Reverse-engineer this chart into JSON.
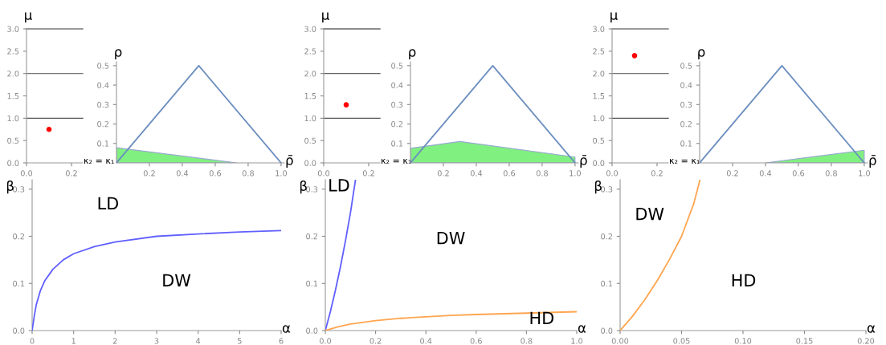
{
  "chart_data": [
    {
      "type": "scatter",
      "xlabel": "κ₂ = κ₁",
      "ylabel": "μ",
      "xlim": [
        0,
        0.25
      ],
      "ylim": [
        0,
        3
      ],
      "xticks": [
        {
          "value": 0,
          "label": "0.0"
        },
        {
          "value": 0.2,
          "label": "0.2"
        }
      ],
      "yticks": [
        {
          "value": 0,
          "label": "0.0"
        },
        0.5,
        {
          "value": 1,
          "label": "1.0"
        },
        1.5,
        {
          "value": 2,
          "label": "2.0"
        },
        2.5,
        {
          "value": 3,
          "label": "3.0"
        }
      ],
      "ref_lines": [
        {
          "axis": "y",
          "value": 1,
          "color": "#555555"
        },
        {
          "axis": "y",
          "value": 2,
          "color": "#777777"
        },
        {
          "axis": "y",
          "value": 3,
          "color": "#777777"
        }
      ],
      "marker": "circle",
      "series": [
        {
          "color": "#ff0000",
          "x": [
            0.1
          ],
          "values": [
            0.75
          ]
        }
      ]
    },
    {
      "type": "line",
      "xlabel": "ρ̄",
      "ylabel": "ρ",
      "xlim": [
        0,
        1.02
      ],
      "ylim": [
        0,
        0.52
      ],
      "xticks": [
        0.2,
        0.4,
        0.6,
        0.8,
        {
          "value": 1,
          "label": "1.0"
        }
      ],
      "yticks": [
        0.1,
        0.2,
        0.3,
        0.4,
        0.5
      ],
      "series": [
        {
          "type": "area",
          "color": "#80f080",
          "x": [
            0,
            0.73
          ],
          "values": [
            0.078,
            0
          ]
        },
        {
          "color": "#6c8ebf",
          "x": [
            0,
            0.5,
            1
          ],
          "values": [
            0,
            0.5,
            0
          ]
        }
      ]
    },
    {
      "type": "scatter",
      "xlabel": "κ₂ = κ₁",
      "ylabel": "μ",
      "xlim": [
        0,
        0.25
      ],
      "ylim": [
        0,
        3
      ],
      "xticks": [
        {
          "value": 0,
          "label": "0.0"
        },
        {
          "value": 0.2,
          "label": "0.2"
        }
      ],
      "yticks": [
        {
          "value": 0,
          "label": "0.0"
        },
        0.5,
        {
          "value": 1,
          "label": "1.0"
        },
        1.5,
        {
          "value": 2,
          "label": "2.0"
        },
        2.5,
        {
          "value": 3,
          "label": "3.0"
        }
      ],
      "ref_lines": [
        {
          "axis": "y",
          "value": 1,
          "color": "#555555"
        },
        {
          "axis": "y",
          "value": 2,
          "color": "#666666"
        },
        {
          "axis": "y",
          "value": 3,
          "color": "#666666"
        }
      ],
      "marker": "circle",
      "series": [
        {
          "color": "#ff0000",
          "x": [
            0.1
          ],
          "values": [
            1.3
          ]
        }
      ]
    },
    {
      "type": "line",
      "xlabel": "ρ̄",
      "ylabel": "ρ",
      "xlim": [
        0,
        1.02
      ],
      "ylim": [
        0,
        0.52
      ],
      "xticks": [
        0.2,
        0.4,
        0.6,
        0.8,
        {
          "value": 1,
          "label": "1.0"
        }
      ],
      "yticks": [
        0.1,
        0.2,
        0.3,
        0.4,
        0.5
      ],
      "series": [
        {
          "type": "area",
          "color": "#80f080",
          "x": [
            0,
            0.3,
            1.0
          ],
          "values": [
            0.075,
            0.11,
            0.03
          ]
        },
        {
          "color": "#6c8ebf",
          "x": [
            0,
            0.5,
            1
          ],
          "values": [
            0,
            0.5,
            0
          ]
        }
      ]
    },
    {
      "type": "scatter",
      "xlabel": "κ₂ = κ₁",
      "ylabel": "μ",
      "xlim": [
        0,
        0.25
      ],
      "ylim": [
        0,
        3
      ],
      "xticks": [
        {
          "value": 0,
          "label": "0.0"
        },
        {
          "value": 0.2,
          "label": "0.2"
        }
      ],
      "yticks": [
        {
          "value": 0,
          "label": "0.0"
        },
        0.5,
        {
          "value": 1,
          "label": "1.0"
        },
        1.5,
        {
          "value": 2,
          "label": "2.0"
        },
        2.5,
        {
          "value": 3,
          "label": "3.0"
        }
      ],
      "ref_lines": [
        {
          "axis": "y",
          "value": 1,
          "color": "#555555"
        },
        {
          "axis": "y",
          "value": 2,
          "color": "#777777"
        },
        {
          "axis": "y",
          "value": 3,
          "color": "#777777"
        }
      ],
      "marker": "circle",
      "series": [
        {
          "color": "#ff0000",
          "x": [
            0.1
          ],
          "values": [
            2.4
          ]
        }
      ]
    },
    {
      "type": "line",
      "xlabel": "ρ̄",
      "ylabel": "ρ",
      "xlim": [
        0,
        1.02
      ],
      "ylim": [
        0,
        0.52
      ],
      "xticks": [
        0.2,
        0.4,
        0.6,
        0.8,
        {
          "value": 1,
          "label": "1.0"
        }
      ],
      "yticks": [
        0.1,
        0.2,
        0.3,
        0.4,
        0.5
      ],
      "series": [
        {
          "type": "area",
          "color": "#80f080",
          "x": [
            0.4,
            1.0
          ],
          "values": [
            0,
            0.065
          ]
        },
        {
          "color": "#6c8ebf",
          "x": [
            0,
            0.5,
            1
          ],
          "values": [
            0,
            0.5,
            0
          ]
        }
      ]
    },
    {
      "type": "line",
      "xlabel": "α",
      "ylabel": "β",
      "xlim": [
        0,
        6
      ],
      "ylim": [
        0,
        0.32
      ],
      "xticks": [
        0,
        1,
        2,
        3,
        4,
        5,
        6
      ],
      "yticks": [
        {
          "value": 0,
          "label": "0.0"
        },
        0.1,
        0.2,
        0.3
      ],
      "annotations": [
        "LD",
        "DW"
      ],
      "series": [
        {
          "color": "#6060ff",
          "x": [
            0,
            0.05,
            0.1,
            0.2,
            0.3,
            0.5,
            0.75,
            1,
            1.5,
            2,
            3,
            4,
            5,
            6
          ],
          "values": [
            0,
            0.03,
            0.055,
            0.085,
            0.105,
            0.13,
            0.15,
            0.163,
            0.178,
            0.188,
            0.2,
            0.205,
            0.209,
            0.212
          ]
        }
      ]
    },
    {
      "type": "line",
      "xlabel": "α",
      "ylabel": "β",
      "xlim": [
        0,
        1
      ],
      "ylim": [
        0,
        0.32
      ],
      "xticks": [
        {
          "value": 0,
          "label": "0.0"
        },
        0.2,
        0.4,
        0.6,
        0.8,
        {
          "value": 1,
          "label": "1.0"
        }
      ],
      "yticks": [
        {
          "value": 0,
          "label": "0.0"
        },
        0.1,
        0.2,
        0.3
      ],
      "annotations": [
        "LD",
        "DW",
        "HD"
      ],
      "series": [
        {
          "color": "#6060ff",
          "x": [
            0,
            0.02,
            0.04,
            0.06,
            0.08,
            0.1,
            0.12
          ],
          "values": [
            0,
            0.04,
            0.085,
            0.135,
            0.19,
            0.25,
            0.32
          ]
        },
        {
          "color": "#ffa54f",
          "x": [
            0,
            0.05,
            0.1,
            0.2,
            0.3,
            0.4,
            0.5,
            0.6,
            0.8,
            1.0
          ],
          "values": [
            0,
            0.008,
            0.014,
            0.021,
            0.026,
            0.029,
            0.032,
            0.034,
            0.037,
            0.04
          ]
        }
      ]
    },
    {
      "type": "line",
      "xlabel": "α",
      "ylabel": "β",
      "xlim": [
        0,
        0.2
      ],
      "ylim": [
        0,
        0.32
      ],
      "xticks": [
        {
          "value": 0,
          "label": "0.00"
        },
        0.05,
        {
          "value": 0.1,
          "label": "0.10"
        },
        0.15,
        {
          "value": 0.2,
          "label": "0.20"
        }
      ],
      "yticks": [
        {
          "value": 0,
          "label": "0.0"
        },
        0.1,
        0.2,
        0.3
      ],
      "annotations": [
        "DW",
        "HD"
      ],
      "series": [
        {
          "color": "#ffa54f",
          "x": [
            0,
            0.01,
            0.02,
            0.03,
            0.04,
            0.05,
            0.06,
            0.065
          ],
          "values": [
            0,
            0.03,
            0.065,
            0.105,
            0.15,
            0.2,
            0.27,
            0.32
          ]
        }
      ]
    }
  ]
}
